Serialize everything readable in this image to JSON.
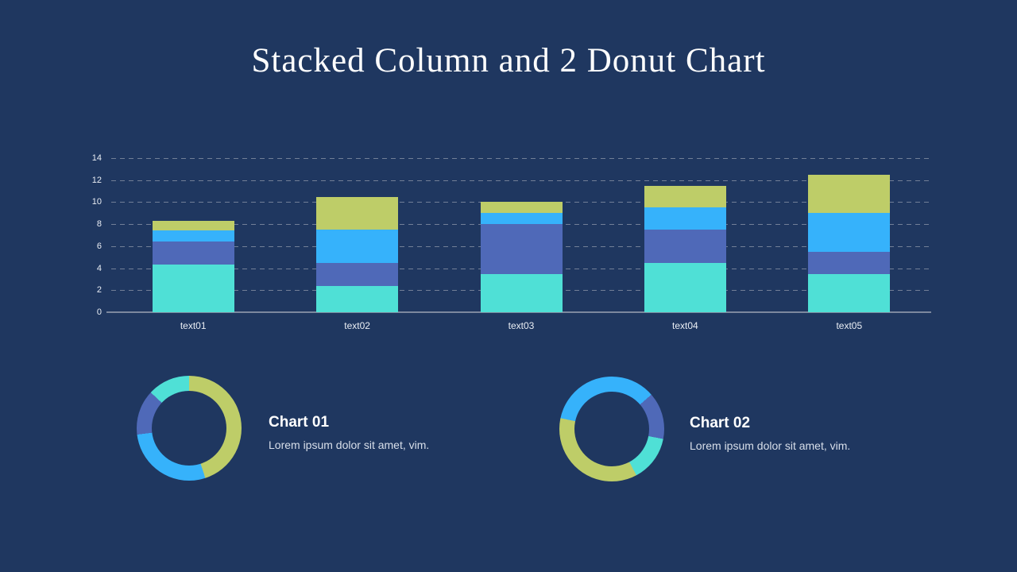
{
  "slide": {
    "title": "Stacked Column and 2 Donut Chart",
    "background": "#1f3760"
  },
  "colors": {
    "teal": "#4fe0d6",
    "blue": "#36b2fb",
    "indigo": "#4f69b8",
    "green": "#becd68",
    "grid": "#8d97a9",
    "axis_text": "#eaeef4",
    "title_text": "#ffffff",
    "desc_text": "#d8dfea"
  },
  "chart_data": [
    {
      "type": "bar",
      "variant": "stacked-column",
      "categories": [
        "text01",
        "text02",
        "text03",
        "text04",
        "text05"
      ],
      "series": [
        {
          "name": "series-teal",
          "color": "teal",
          "values": [
            4.3,
            2.4,
            3.5,
            4.5,
            3.5
          ]
        },
        {
          "name": "series-indigo",
          "color": "indigo",
          "values": [
            2.1,
            2.1,
            4.5,
            3.0,
            2.0
          ]
        },
        {
          "name": "series-blue",
          "color": "blue",
          "values": [
            1.0,
            3.0,
            1.0,
            2.0,
            3.5
          ]
        },
        {
          "name": "series-green",
          "color": "green",
          "values": [
            0.9,
            3.0,
            1.0,
            2.0,
            3.5
          ]
        }
      ],
      "totals": [
        8.3,
        10.5,
        10.0,
        11.5,
        12.5
      ],
      "ylim": [
        0,
        14
      ],
      "yticks": [
        0,
        2,
        4,
        6,
        8,
        10,
        12,
        14
      ],
      "grid": "horizontal dashed",
      "legend": "none",
      "xlabel": "",
      "ylabel": ""
    },
    {
      "type": "pie",
      "variant": "donut",
      "title": "Chart 01",
      "description": "Lorem ipsum dolor sit amet, vim.",
      "segments": [
        {
          "color": "green",
          "from_deg": 0,
          "to_deg": 162,
          "pct": 45
        },
        {
          "color": "blue",
          "from_deg": 162,
          "to_deg": 263,
          "pct": 28
        },
        {
          "color": "indigo",
          "from_deg": 263,
          "to_deg": 313,
          "pct": 14
        },
        {
          "color": "teal",
          "from_deg": 313,
          "to_deg": 360,
          "pct": 13
        }
      ]
    },
    {
      "type": "pie",
      "variant": "donut",
      "title": "Chart 02",
      "description": "Lorem ipsum dolor sit amet, vim.",
      "segments": [
        {
          "color": "blue",
          "from_deg": 0,
          "to_deg": 49,
          "pct": 14
        },
        {
          "color": "indigo",
          "from_deg": 49,
          "to_deg": 101,
          "pct": 14
        },
        {
          "color": "teal",
          "from_deg": 101,
          "to_deg": 152,
          "pct": 14
        },
        {
          "color": "green",
          "from_deg": 152,
          "to_deg": 282,
          "pct": 36
        },
        {
          "color": "blue",
          "from_deg": 282,
          "to_deg": 360,
          "pct": 22
        }
      ]
    }
  ]
}
